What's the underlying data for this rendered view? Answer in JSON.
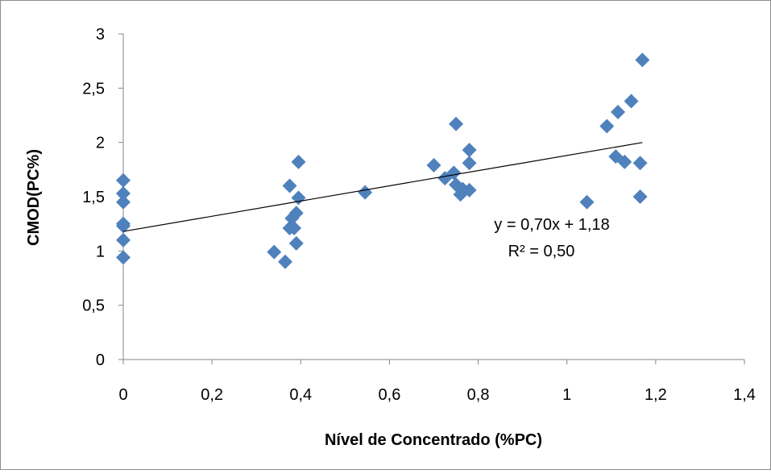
{
  "chart_data": {
    "type": "scatter",
    "title": "",
    "xlabel": "Nível de Concentrado (%PC)",
    "ylabel": "CMOD(PC%)",
    "xlim": [
      0,
      1.4
    ],
    "ylim": [
      0,
      3
    ],
    "x_ticks": [
      0,
      0.2,
      0.4,
      0.6,
      0.8,
      1,
      1.2,
      1.4
    ],
    "y_ticks": [
      0,
      0.5,
      1,
      1.5,
      2,
      2.5,
      3
    ],
    "x_tick_labels": [
      "0",
      "0,2",
      "0,4",
      "0,6",
      "0,8",
      "1",
      "1,2",
      "1,4"
    ],
    "y_tick_labels": [
      "0",
      "0,5",
      "1",
      "1,5",
      "2",
      "2,5",
      "3"
    ],
    "grid": false,
    "legend": "none",
    "marker": "diamond",
    "marker_color": "#4F81BD",
    "series": [
      {
        "points": [
          [
            0.0,
            1.65
          ],
          [
            0.0,
            1.53
          ],
          [
            0.0,
            1.45
          ],
          [
            0.0,
            1.25
          ],
          [
            0.0,
            1.23
          ],
          [
            0.0,
            1.1
          ],
          [
            0.0,
            0.94
          ],
          [
            0.34,
            0.99
          ],
          [
            0.365,
            0.9
          ],
          [
            0.375,
            1.6
          ],
          [
            0.375,
            1.21
          ],
          [
            0.38,
            1.3
          ],
          [
            0.385,
            1.21
          ],
          [
            0.39,
            1.35
          ],
          [
            0.39,
            1.07
          ],
          [
            0.395,
            1.49
          ],
          [
            0.395,
            1.82
          ],
          [
            0.545,
            1.54
          ],
          [
            0.7,
            1.79
          ],
          [
            0.725,
            1.67
          ],
          [
            0.745,
            1.72
          ],
          [
            0.75,
            1.61
          ],
          [
            0.75,
            2.17
          ],
          [
            0.76,
            1.52
          ],
          [
            0.765,
            1.57
          ],
          [
            0.78,
            1.93
          ],
          [
            0.78,
            1.81
          ],
          [
            0.78,
            1.56
          ],
          [
            1.045,
            1.45
          ],
          [
            1.09,
            2.15
          ],
          [
            1.11,
            1.87
          ],
          [
            1.115,
            2.28
          ],
          [
            1.13,
            1.82
          ],
          [
            1.145,
            2.38
          ],
          [
            1.165,
            1.81
          ],
          [
            1.165,
            1.5
          ],
          [
            1.17,
            2.76
          ]
        ]
      }
    ],
    "trendline": {
      "type": "linear",
      "slope": 0.7,
      "intercept": 1.18,
      "x_range": [
        0,
        1.17
      ],
      "color": "#000000"
    },
    "annotations": {
      "equation": "y = 0,70x + 1,18",
      "r_squared": "R² = 0,50"
    }
  }
}
